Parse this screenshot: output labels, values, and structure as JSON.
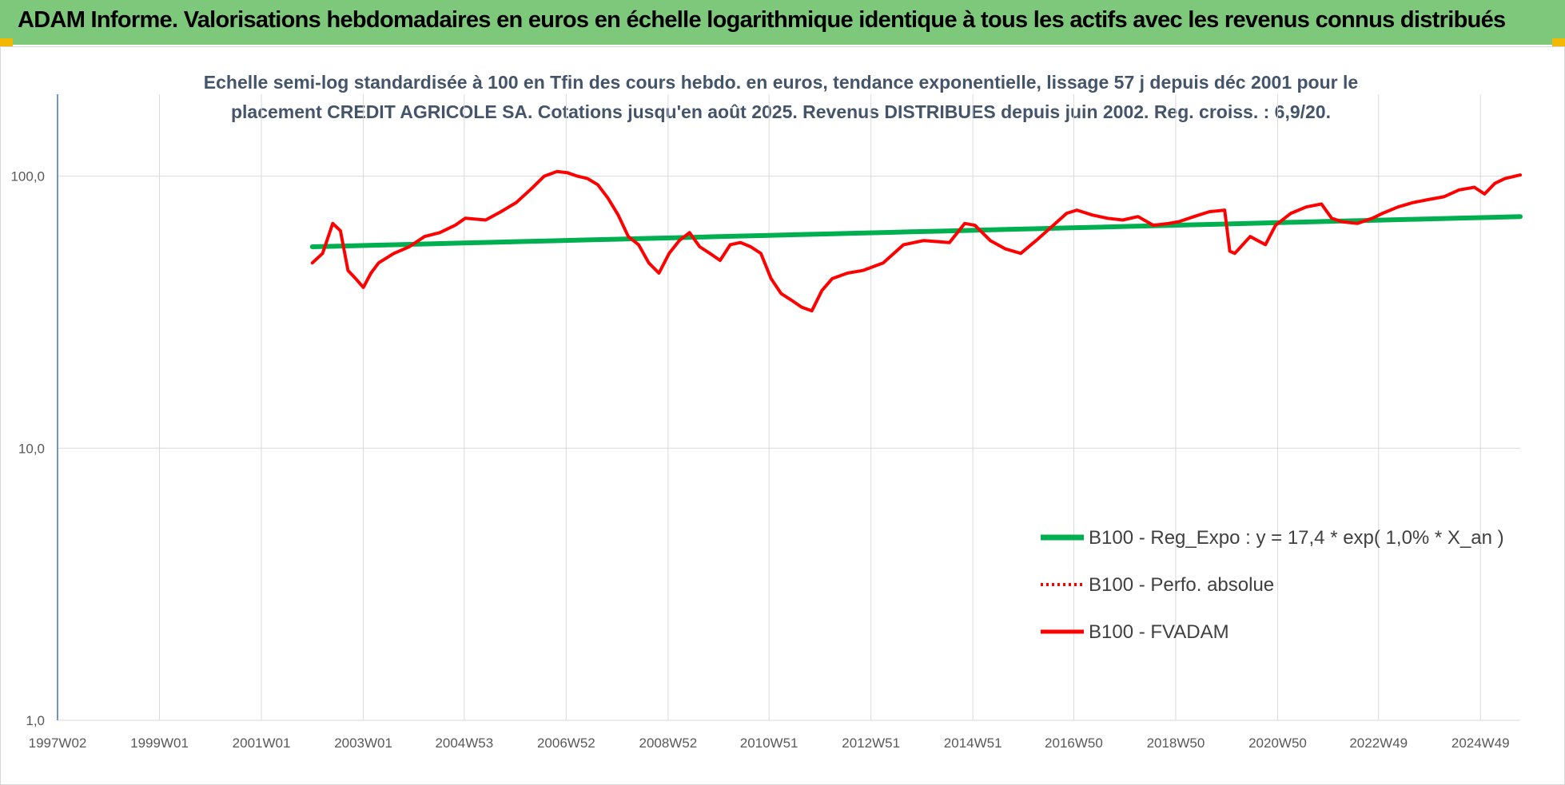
{
  "header": {
    "title": "ADAM Informe. Valorisations hebdomadaires en euros en échelle logarithmique identique à tous les actifs avec les revenus connus distribués"
  },
  "colors": {
    "header_bg": "#7dc87a",
    "regression": "#00b050",
    "fvadam": "#ff0000",
    "perfo": "#ff0000",
    "subtitle": "#44546a",
    "axis": "#4472c4"
  },
  "chart_data": {
    "type": "line",
    "subtitle_line1": "Echelle semi-log standardisée à 100 en Tfin des cours hebdo. en euros, tendance exponentielle, lissage 57 j depuis déc 2001 pour le",
    "subtitle_line2": "placement CREDIT AGRICOLE SA.  Cotations jusqu'en août 2025.  Revenus DISTRIBUES depuis juin 2002. Reg. croiss. : 6,9/20.",
    "y_scale": "log",
    "ylim": [
      1,
      200
    ],
    "y_ticks": [
      {
        "value": 1,
        "label": "1,0"
      },
      {
        "value": 10,
        "label": "10,0"
      },
      {
        "value": 100,
        "label": "100,0"
      }
    ],
    "xlim": [
      1997.0,
      2025.7
    ],
    "x_ticks": [
      {
        "value": 1997.0,
        "label": "1997W02"
      },
      {
        "value": 1999.0,
        "label": "1999W01"
      },
      {
        "value": 2001.0,
        "label": "2001W01"
      },
      {
        "value": 2003.0,
        "label": "2003W01"
      },
      {
        "value": 2004.98,
        "label": "2004W53"
      },
      {
        "value": 2006.98,
        "label": "2006W52"
      },
      {
        "value": 2008.98,
        "label": "2008W52"
      },
      {
        "value": 2010.96,
        "label": "2010W51"
      },
      {
        "value": 2012.96,
        "label": "2012W51"
      },
      {
        "value": 2014.96,
        "label": "2014W51"
      },
      {
        "value": 2016.94,
        "label": "2016W50"
      },
      {
        "value": 2018.94,
        "label": "2018W50"
      },
      {
        "value": 2020.94,
        "label": "2020W50"
      },
      {
        "value": 2022.92,
        "label": "2022W49"
      },
      {
        "value": 2024.92,
        "label": "2024W49"
      }
    ],
    "grid": "vertical",
    "legend_position": "bottom-right",
    "series": [
      {
        "name": "B100 - Reg_Expo : y = 17,4 * exp( 1,0% *  X_an )",
        "style": "solid",
        "x": [
          2002.0,
          2025.7
        ],
        "y": [
          55,
          71
        ]
      },
      {
        "name": "B100 - Perfo. absolue",
        "style": "dotted",
        "x": [],
        "y": []
      },
      {
        "name": "B100 - FVADAM",
        "style": "solid",
        "x": [
          2002.0,
          2002.2,
          2002.4,
          2002.55,
          2002.7,
          2002.85,
          2003.0,
          2003.15,
          2003.3,
          2003.6,
          2003.9,
          2004.2,
          2004.5,
          2004.8,
          2005.0,
          2005.4,
          2005.7,
          2006.0,
          2006.3,
          2006.55,
          2006.8,
          2007.0,
          2007.2,
          2007.4,
          2007.6,
          2007.8,
          2008.0,
          2008.2,
          2008.4,
          2008.6,
          2008.8,
          2009.0,
          2009.2,
          2009.4,
          2009.6,
          2009.8,
          2010.0,
          2010.2,
          2010.4,
          2010.6,
          2010.8,
          2011.0,
          2011.2,
          2011.4,
          2011.6,
          2011.8,
          2012.0,
          2012.2,
          2012.5,
          2012.8,
          2013.2,
          2013.6,
          2014.0,
          2014.5,
          2014.8,
          2015.0,
          2015.3,
          2015.6,
          2015.9,
          2016.2,
          2016.5,
          2016.8,
          2017.0,
          2017.3,
          2017.6,
          2017.9,
          2018.2,
          2018.5,
          2018.8,
          2019.0,
          2019.3,
          2019.6,
          2019.9,
          2020.0,
          2020.1,
          2020.4,
          2020.7,
          2020.9,
          2021.2,
          2021.5,
          2021.8,
          2022.0,
          2022.2,
          2022.5,
          2022.8,
          2023.0,
          2023.3,
          2023.6,
          2023.9,
          2024.2,
          2024.5,
          2024.8,
          2025.0,
          2025.2,
          2025.4,
          2025.7
        ],
        "y": [
          48,
          52,
          67,
          63,
          45,
          42,
          39,
          44,
          48,
          52,
          55,
          60,
          62,
          66,
          70,
          69,
          74,
          80,
          90,
          100,
          104,
          103,
          100,
          98,
          93,
          83,
          72,
          60,
          56,
          48,
          44,
          52,
          58,
          62,
          55,
          52,
          49,
          56,
          57,
          55,
          52,
          42,
          37,
          35,
          33,
          32,
          38,
          42,
          44,
          45,
          48,
          56,
          58,
          57,
          67,
          66,
          58,
          54,
          52,
          58,
          65,
          73,
          75,
          72,
          70,
          69,
          71,
          66,
          67,
          68,
          71,
          74,
          75,
          53,
          52,
          60,
          56,
          66,
          73,
          77,
          79,
          70,
          68,
          67,
          70,
          73,
          77,
          80,
          82,
          84,
          89,
          91,
          86,
          94,
          98,
          101
        ]
      }
    ]
  }
}
